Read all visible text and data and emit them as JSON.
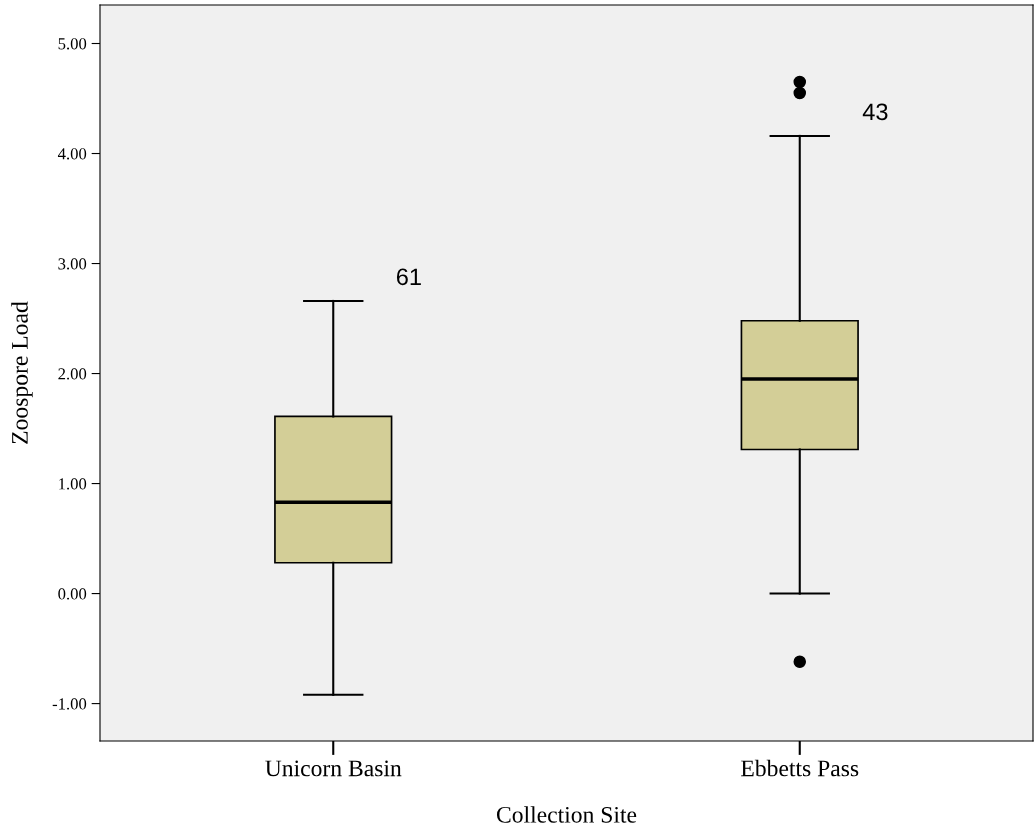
{
  "chart_data": {
    "type": "box",
    "xlabel": "Collection Site",
    "ylabel": "Zoospore Load",
    "categories": [
      "Unicorn Basin",
      "Ebbetts Pass"
    ],
    "series": [
      {
        "color": "#d3ce97",
        "boxes": [
          {
            "low": -0.92,
            "q1": 0.28,
            "median": 0.83,
            "q3": 1.61,
            "high": 2.66
          },
          {
            "low": 0.0,
            "q1": 1.31,
            "median": 1.95,
            "q3": 2.48,
            "high": 4.16,
            "outliers": [
              4.65,
              4.55,
              -0.62
            ]
          }
        ]
      }
    ],
    "ylim": [
      -1.34,
      5.35
    ],
    "yticks": [
      {
        "value": -1,
        "label": "-1.00"
      },
      {
        "value": 0,
        "label": "0.00"
      },
      {
        "value": 1,
        "label": "1.00"
      },
      {
        "value": 2,
        "label": "2.00"
      },
      {
        "value": 3,
        "label": "3.00"
      },
      {
        "value": 4,
        "label": "4.00"
      },
      {
        "value": 5,
        "label": "5.00"
      }
    ],
    "annotations": [
      {
        "text": "61",
        "x": "Unicorn Basin",
        "y": 2.66
      },
      {
        "text": "43",
        "x": "Ebbetts Pass",
        "y": 4.16
      }
    ],
    "grid": false
  }
}
